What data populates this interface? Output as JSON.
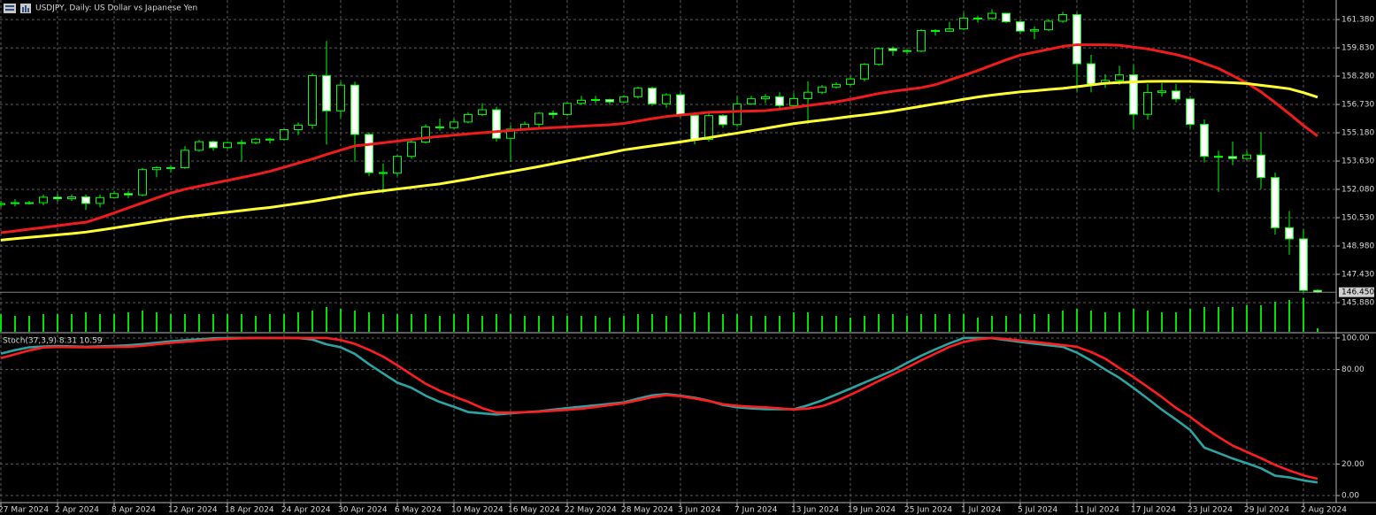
{
  "chart_data": [
    {
      "type": "candlestick",
      "title": "USDJPY, Daily:  US Dollar vs Japanese Yen",
      "categories": [
        "27 Mar 2024",
        null,
        null,
        null,
        "2 Apr 2024",
        null,
        null,
        null,
        "8 Apr 2024",
        null,
        null,
        null,
        "12 Apr 2024",
        null,
        null,
        null,
        "18 Apr 2024",
        null,
        null,
        null,
        "24 Apr 2024",
        null,
        null,
        null,
        "30 Apr 2024",
        null,
        null,
        null,
        "6 May 2024",
        null,
        null,
        null,
        "10 May 2024",
        null,
        null,
        null,
        "16 May 2024",
        null,
        null,
        null,
        "22 May 2024",
        null,
        null,
        null,
        "28 May 2024",
        null,
        null,
        null,
        "3 Jun 2024",
        null,
        null,
        null,
        "7 Jun 2024",
        null,
        null,
        null,
        "13 Jun 2024",
        null,
        null,
        null,
        "19 Jun 2024",
        null,
        null,
        null,
        "25 Jun 2024",
        null,
        null,
        null,
        "1 Jul 2024",
        null,
        null,
        null,
        "5 Jul 2024",
        null,
        null,
        null,
        "11 Jul 2024",
        null,
        null,
        null,
        "17 Jul 2024",
        null,
        null,
        null,
        "23 Jul 2024",
        null,
        null,
        null,
        "29 Jul 2024",
        null,
        null,
        null,
        "2 Aug 2024",
        null
      ],
      "open": [
        151.25,
        151.31,
        151.35,
        151.35,
        151.65,
        151.57,
        151.67,
        151.31,
        151.63,
        151.85,
        151.78,
        153.16,
        153.27,
        153.27,
        154.22,
        154.69,
        154.37,
        154.64,
        154.64,
        154.83,
        154.81,
        155.35,
        155.6,
        158.31,
        156.38,
        157.79,
        155.09,
        153.0,
        152.97,
        153.89,
        154.67,
        155.5,
        155.46,
        155.77,
        156.18,
        156.44,
        154.88,
        155.38,
        155.65,
        156.25,
        156.18,
        156.79,
        156.96,
        157.0,
        156.87,
        157.15,
        157.62,
        156.77,
        157.26,
        156.13,
        154.82,
        156.12,
        155.63,
        156.75,
        157.04,
        157.15,
        156.67,
        157.05,
        157.4,
        157.69,
        157.83,
        158.13,
        158.93,
        159.79,
        159.68,
        159.65,
        160.78,
        160.74,
        160.87,
        161.46,
        161.45,
        161.72,
        161.26,
        160.75,
        160.82,
        161.29,
        161.65,
        158.96,
        157.85,
        158.05,
        158.35,
        156.19,
        157.39,
        157.47,
        157.03,
        155.64,
        153.89,
        153.88,
        153.77,
        153.96,
        152.73,
        149.98,
        149.37,
        146.55
      ],
      "high": [
        151.45,
        151.55,
        151.45,
        151.8,
        151.85,
        151.8,
        151.8,
        151.8,
        152.0,
        152.0,
        153.25,
        153.35,
        153.4,
        154.45,
        154.78,
        154.75,
        154.7,
        154.8,
        154.9,
        154.9,
        155.4,
        155.75,
        158.44,
        160.21,
        157.97,
        157.98,
        155.2,
        153.5,
        153.95,
        154.75,
        155.65,
        155.95,
        155.95,
        156.3,
        156.8,
        156.6,
        155.6,
        155.8,
        156.3,
        156.4,
        156.85,
        157.2,
        157.2,
        157.05,
        157.25,
        157.7,
        157.7,
        157.35,
        157.4,
        156.3,
        156.35,
        156.2,
        157.2,
        157.2,
        157.3,
        157.4,
        157.35,
        158.0,
        157.8,
        157.95,
        158.25,
        159.0,
        159.85,
        159.9,
        159.75,
        160.85,
        160.85,
        161.25,
        161.75,
        161.6,
        161.95,
        161.75,
        161.35,
        161.0,
        161.4,
        161.8,
        161.76,
        159.45,
        158.4,
        158.85,
        158.9,
        157.85,
        157.9,
        157.85,
        157.1,
        155.9,
        154.2,
        154.7,
        154.2,
        155.22,
        153.0,
        150.9,
        149.9,
        146.6
      ],
      "low": [
        151.1,
        151.15,
        151.25,
        151.2,
        151.4,
        151.45,
        150.95,
        151.1,
        151.6,
        151.6,
        151.7,
        152.75,
        153.0,
        153.2,
        154.15,
        154.2,
        154.3,
        153.6,
        154.55,
        154.6,
        154.75,
        155.05,
        155.4,
        154.54,
        156.0,
        153.6,
        152.8,
        151.86,
        152.8,
        153.75,
        154.6,
        155.3,
        155.4,
        155.7,
        156.1,
        154.7,
        153.6,
        155.3,
        155.45,
        155.95,
        156.1,
        156.7,
        156.8,
        156.7,
        156.8,
        157.05,
        156.65,
        156.55,
        156.0,
        154.55,
        154.7,
        155.45,
        155.5,
        156.7,
        156.8,
        156.5,
        156.55,
        155.65,
        157.3,
        157.6,
        157.75,
        158.0,
        158.85,
        159.4,
        159.5,
        159.6,
        160.5,
        160.7,
        160.8,
        161.2,
        161.35,
        161.2,
        160.6,
        160.3,
        160.75,
        161.2,
        157.44,
        157.4,
        157.65,
        157.8,
        155.37,
        155.9,
        157.15,
        156.85,
        155.4,
        153.55,
        151.94,
        153.4,
        153.65,
        152.1,
        149.6,
        148.5,
        146.45,
        146.4
      ],
      "close": [
        151.31,
        151.35,
        151.35,
        151.65,
        151.57,
        151.67,
        151.31,
        151.63,
        151.85,
        151.78,
        153.16,
        153.27,
        153.27,
        154.22,
        154.69,
        154.37,
        154.64,
        154.64,
        154.83,
        154.81,
        155.35,
        155.6,
        158.31,
        156.38,
        157.79,
        155.09,
        153.0,
        152.97,
        153.89,
        154.67,
        155.5,
        155.46,
        155.77,
        156.18,
        156.44,
        154.88,
        155.38,
        155.65,
        156.25,
        156.18,
        156.79,
        156.96,
        157.0,
        156.87,
        157.15,
        157.62,
        156.77,
        157.26,
        156.13,
        154.82,
        156.12,
        155.63,
        156.75,
        157.04,
        157.15,
        156.67,
        157.05,
        157.4,
        157.69,
        157.83,
        158.13,
        158.93,
        159.79,
        159.68,
        159.65,
        160.78,
        160.74,
        160.87,
        161.46,
        161.45,
        161.72,
        161.26,
        160.75,
        160.82,
        161.29,
        161.65,
        158.96,
        157.85,
        158.05,
        158.35,
        156.19,
        157.39,
        157.47,
        157.03,
        155.64,
        153.89,
        153.88,
        153.77,
        153.96,
        152.73,
        149.98,
        149.37,
        146.55,
        146.45
      ],
      "volume": [
        20,
        18,
        18,
        20,
        20,
        20,
        22,
        20,
        20,
        22,
        24,
        22,
        20,
        20,
        20,
        20,
        20,
        20,
        18,
        20,
        20,
        22,
        24,
        28,
        26,
        24,
        22,
        20,
        20,
        20,
        20,
        18,
        20,
        20,
        18,
        20,
        20,
        18,
        18,
        18,
        18,
        18,
        18,
        16,
        18,
        20,
        20,
        18,
        20,
        22,
        22,
        20,
        20,
        18,
        18,
        18,
        22,
        22,
        18,
        18,
        16,
        18,
        20,
        20,
        18,
        20,
        20,
        20,
        20,
        16,
        18,
        18,
        20,
        20,
        20,
        24,
        26,
        24,
        22,
        22,
        26,
        24,
        22,
        22,
        26,
        28,
        28,
        28,
        30,
        30,
        34,
        36,
        38,
        4
      ],
      "series": [
        {
          "color": "#ee1c1c",
          "values": [
            149.71,
            149.8,
            149.9,
            149.99,
            150.09,
            150.19,
            150.28,
            150.52,
            150.79,
            151.07,
            151.34,
            151.61,
            151.88,
            152.09,
            152.25,
            152.41,
            152.57,
            152.73,
            152.89,
            153.07,
            153.29,
            153.52,
            153.74,
            153.99,
            154.23,
            154.46,
            154.54,
            154.63,
            154.72,
            154.81,
            154.9,
            154.98,
            155.05,
            155.12,
            155.18,
            155.24,
            155.31,
            155.37,
            155.42,
            155.46,
            155.5,
            155.54,
            155.58,
            155.62,
            155.69,
            155.82,
            155.95,
            156.07,
            156.15,
            156.22,
            156.3,
            156.32,
            156.35,
            156.37,
            156.39,
            156.47,
            156.57,
            156.67,
            156.77,
            156.87,
            157.01,
            157.17,
            157.33,
            157.45,
            157.55,
            157.65,
            157.81,
            158.07,
            158.32,
            158.59,
            158.88,
            159.17,
            159.43,
            159.59,
            159.75,
            159.91,
            160.0,
            160.0,
            160.0,
            159.97,
            159.87,
            159.77,
            159.62,
            159.46,
            159.26,
            158.98,
            158.7,
            158.31,
            157.91,
            157.42,
            156.83,
            156.22,
            155.58,
            155.0
          ]
        },
        {
          "color": "#ffff33",
          "values": [
            149.3,
            149.38,
            149.45,
            149.52,
            149.59,
            149.66,
            149.74,
            149.85,
            149.97,
            150.09,
            150.21,
            150.33,
            150.45,
            150.57,
            150.65,
            150.74,
            150.83,
            150.92,
            151.01,
            151.09,
            151.2,
            151.31,
            151.42,
            151.55,
            151.68,
            151.81,
            151.91,
            152.0,
            152.1,
            152.19,
            152.29,
            152.38,
            152.51,
            152.64,
            152.78,
            152.92,
            153.05,
            153.19,
            153.33,
            153.48,
            153.63,
            153.78,
            153.93,
            154.08,
            154.24,
            154.35,
            154.46,
            154.57,
            154.68,
            154.8,
            154.91,
            155.04,
            155.16,
            155.29,
            155.42,
            155.55,
            155.68,
            155.78,
            155.87,
            155.97,
            156.07,
            156.16,
            156.26,
            156.37,
            156.5,
            156.63,
            156.76,
            156.88,
            157.01,
            157.14,
            157.24,
            157.33,
            157.42,
            157.48,
            157.55,
            157.61,
            157.7,
            157.8,
            157.89,
            157.93,
            157.96,
            157.99,
            158.0,
            158.0,
            158.0,
            157.98,
            157.95,
            157.92,
            157.88,
            157.78,
            157.69,
            157.59,
            157.38,
            157.13
          ]
        }
      ],
      "colors": {
        "up_body": "#000000",
        "down_body": "#ffffff",
        "outline": "#00ff00",
        "volume": "#00e000",
        "last_price_line": "#808080"
      },
      "ylim": [
        144.28,
        162.45
      ],
      "yticks": [
        {
          "value": 161.38,
          "label": "161.380"
        },
        {
          "value": 159.83,
          "label": "159.830"
        },
        {
          "value": 158.28,
          "label": "158.280"
        },
        {
          "value": 156.73,
          "label": "156.730"
        },
        {
          "value": 155.18,
          "label": "155.180"
        },
        {
          "value": 153.63,
          "label": "153.630"
        },
        {
          "value": 152.08,
          "label": "152.080"
        },
        {
          "value": 150.53,
          "label": "150.530"
        },
        {
          "value": 148.98,
          "label": "148.980"
        },
        {
          "value": 147.43,
          "label": "147.430"
        },
        {
          "value": 145.88,
          "label": "145.880"
        }
      ],
      "last_price": {
        "value": 146.45,
        "label": "146.450"
      },
      "grid": true
    },
    {
      "type": "line",
      "title": "Stoch(37,3,9) 8.31 10.59",
      "series": [
        {
          "color": "#2fa3a3",
          "values": [
            90.1,
            92.3,
            94.1,
            94.6,
            94.9,
            94.7,
            94.4,
            94.7,
            95.0,
            95.4,
            96.1,
            97.0,
            97.9,
            98.6,
            99.2,
            99.8,
            100,
            100,
            100,
            100,
            100,
            100,
            99.0,
            96.0,
            94.1,
            89.9,
            83.4,
            77.5,
            71.7,
            68.4,
            63.4,
            59.4,
            56.3,
            53.0,
            52.2,
            51.4,
            52.2,
            52.9,
            53.5,
            54.5,
            55.5,
            56.4,
            57.3,
            58.2,
            59.2,
            61.5,
            63.6,
            64.4,
            63.4,
            62.1,
            60.2,
            57.5,
            56.0,
            55.3,
            54.8,
            54.8,
            54.8,
            57.3,
            60.4,
            64.1,
            67.9,
            71.7,
            75.5,
            79.4,
            84.2,
            88.7,
            92.8,
            96.6,
            100,
            100,
            99.9,
            98.7,
            97.5,
            96.4,
            95.4,
            94.4,
            90.7,
            85.7,
            80.0,
            74.7,
            68.3,
            61.5,
            54.5,
            48.2,
            41.6,
            30.4,
            27.0,
            23.5,
            20.5,
            17.3,
            12.6,
            11.5,
            9.6,
            8.31
          ]
        },
        {
          "color": "#ff1e1e",
          "values": [
            87.2,
            89.7,
            92.1,
            94.0,
            94.3,
            94.2,
            94.1,
            94.2,
            94.3,
            94.4,
            95.0,
            96.0,
            96.9,
            97.6,
            98.3,
            99.0,
            99.5,
            99.8,
            100,
            100,
            100,
            100,
            100,
            100,
            98.7,
            96.3,
            92.5,
            88.2,
            82.7,
            76.8,
            71.0,
            66.5,
            62.9,
            59.5,
            55.5,
            52.7,
            52.6,
            52.9,
            53.2,
            53.8,
            54.4,
            55.1,
            56.2,
            57.4,
            58.6,
            60.5,
            62.4,
            63.8,
            63.0,
            61.6,
            60.0,
            58.0,
            57.0,
            56.4,
            56.0,
            55.4,
            54.6,
            55.2,
            56.7,
            59.9,
            63.9,
            68.2,
            72.7,
            77.0,
            81.2,
            85.8,
            90.1,
            94.4,
            97.5,
            99.2,
            100,
            99.4,
            98.4,
            97.5,
            96.5,
            95.5,
            94.4,
            91.1,
            86.9,
            80.9,
            75.2,
            68.9,
            62.5,
            55.6,
            49.9,
            43.2,
            37.2,
            31.7,
            27.7,
            23.7,
            19.4,
            15.9,
            12.8,
            10.59
          ]
        }
      ],
      "ylim": [
        -4.5,
        102.8
      ],
      "yticks": [
        {
          "value": 100,
          "label": "100.00"
        },
        {
          "value": 80,
          "label": "80.00"
        },
        {
          "value": 20,
          "label": "20.00"
        },
        {
          "value": 0,
          "label": "0.00"
        }
      ],
      "grid": true
    }
  ]
}
